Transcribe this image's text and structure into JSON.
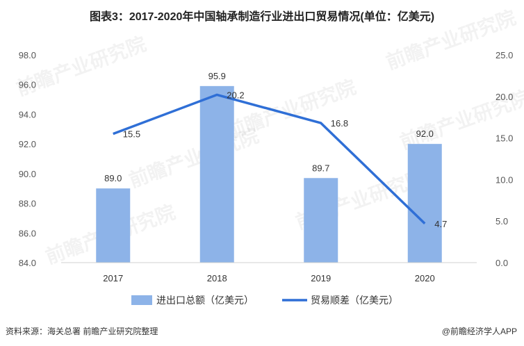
{
  "title": "图表3：2017-2020年中国轴承制造行业进出口贸易情况(单位：亿美元)",
  "chart_data": {
    "type": "bar+line",
    "categories": [
      "2017",
      "2018",
      "2019",
      "2020"
    ],
    "series": [
      {
        "name": "进出口总额（亿美元）",
        "type": "bar",
        "axis": "left",
        "values": [
          89.0,
          95.9,
          89.7,
          92.0
        ],
        "labels": [
          "89.0",
          "95.9",
          "89.7",
          "92.0"
        ],
        "color": "#8DB3E8"
      },
      {
        "name": "贸易顺差（亿美元）",
        "type": "line",
        "axis": "right",
        "values": [
          15.5,
          20.2,
          16.8,
          4.7
        ],
        "labels": [
          "15.5",
          "20.2",
          "16.8",
          "4.7"
        ],
        "color": "#2F6FD6"
      }
    ],
    "y_left": {
      "range": [
        84.0,
        98.0
      ],
      "ticks": [
        "84.0",
        "86.0",
        "88.0",
        "90.0",
        "92.0",
        "94.0",
        "96.0",
        "98.0"
      ]
    },
    "y_right": {
      "range": [
        0.0,
        25.0
      ],
      "ticks": [
        "0.0",
        "5.0",
        "10.0",
        "15.0",
        "20.0",
        "25.0"
      ]
    },
    "grid": false,
    "legend_position": "bottom"
  },
  "footer": {
    "source": "资料来源：海关总署 前瞻产业研究院整理",
    "brand": "@前瞻经济学人APP"
  },
  "watermark": "前瞻产业研究院"
}
